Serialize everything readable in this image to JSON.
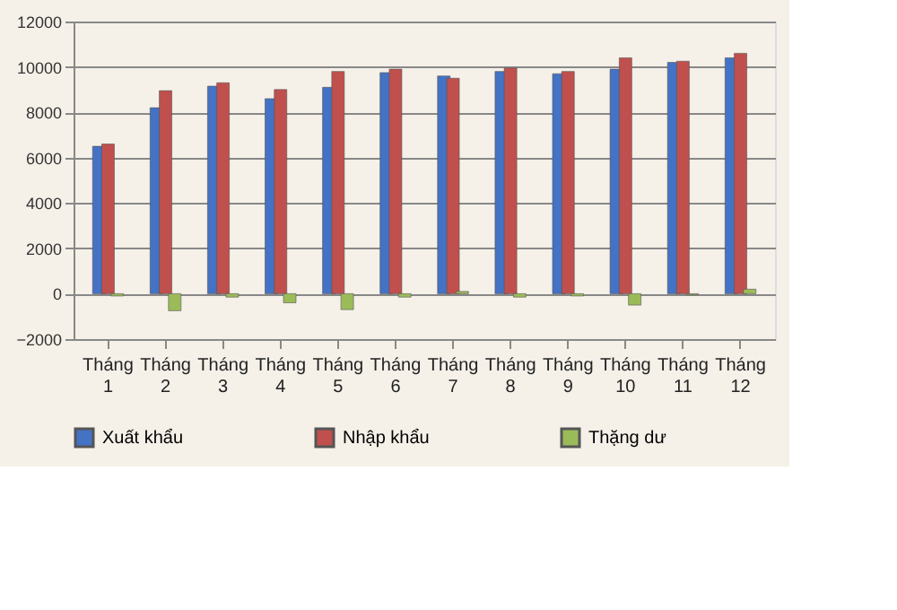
{
  "chart_data": {
    "type": "bar",
    "categories": [
      "Tháng 1",
      "Tháng 2",
      "Tháng 3",
      "Tháng 4",
      "Tháng 5",
      "Tháng 6",
      "Tháng 7",
      "Tháng 8",
      "Tháng 9",
      "Tháng 10",
      "Tháng 11",
      "Tháng 12"
    ],
    "series": [
      {
        "name": "Xuất khẩu",
        "color": "#4472c4",
        "values": [
          6500,
          8200,
          9150,
          8600,
          9100,
          9750,
          9600,
          9800,
          9700,
          9900,
          10200,
          10400
        ]
      },
      {
        "name": "Nhập khẩu",
        "color": "#c0504d",
        "values": [
          6600,
          8950,
          9300,
          9000,
          9800,
          9900,
          9500,
          9950,
          9800,
          10400,
          10250,
          10600
        ]
      },
      {
        "name": "Thặng dư",
        "color": "#9bbb59",
        "values": [
          -100,
          -750,
          -150,
          -400,
          -700,
          -150,
          100,
          -150,
          -100,
          -500,
          -50,
          200
        ]
      }
    ],
    "ylim": [
      -2000,
      12000
    ],
    "yticks": [
      -2000,
      0,
      2000,
      4000,
      6000,
      8000,
      10000,
      12000
    ],
    "grid": "y",
    "legend": "bottom"
  }
}
